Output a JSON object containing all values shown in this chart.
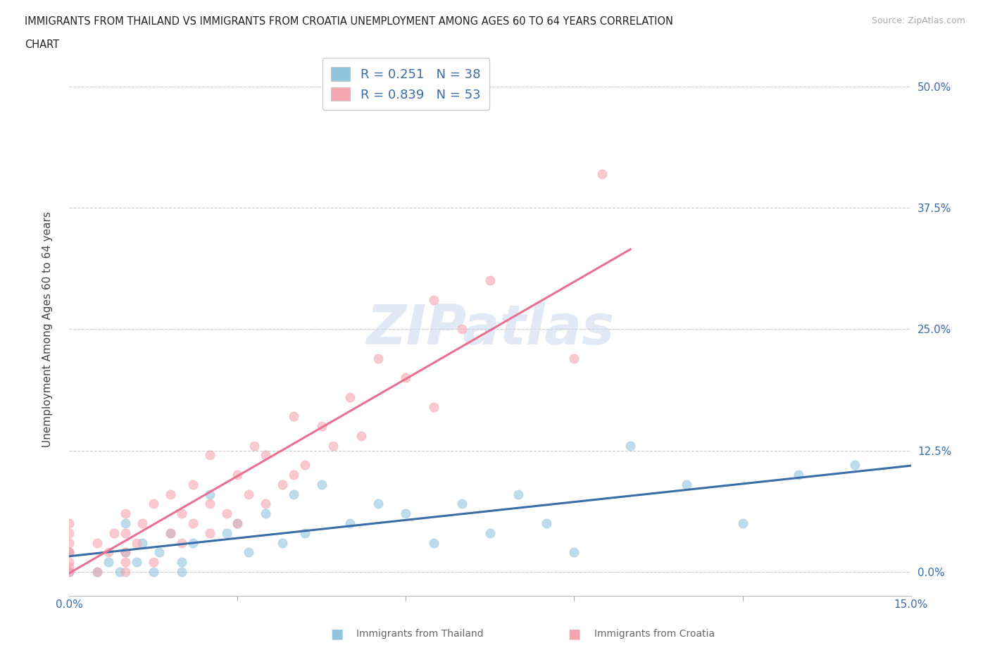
{
  "title_line1": "IMMIGRANTS FROM THAILAND VS IMMIGRANTS FROM CROATIA UNEMPLOYMENT AMONG AGES 60 TO 64 YEARS CORRELATION",
  "title_line2": "CHART",
  "source": "Source: ZipAtlas.com",
  "ylabel": "Unemployment Among Ages 60 to 64 years",
  "xlim": [
    0.0,
    0.15
  ],
  "ylim": [
    -0.025,
    0.525
  ],
  "yticks": [
    0.0,
    0.125,
    0.25,
    0.375,
    0.5
  ],
  "ytick_labels": [
    "0.0%",
    "12.5%",
    "25.0%",
    "37.5%",
    "50.0%"
  ],
  "R_thailand": 0.251,
  "N_thailand": 38,
  "R_croatia": 0.839,
  "N_croatia": 53,
  "color_thailand": "#92C5DE",
  "color_croatia": "#F4A5B0",
  "line_color_thailand": "#3A6CA8",
  "line_color_croatia": "#E87090",
  "thailand_x": [
    0.0,
    0.0,
    0.005,
    0.007,
    0.009,
    0.01,
    0.01,
    0.012,
    0.013,
    0.015,
    0.016,
    0.018,
    0.02,
    0.02,
    0.022,
    0.025,
    0.028,
    0.03,
    0.032,
    0.035,
    0.038,
    0.04,
    0.042,
    0.045,
    0.05,
    0.055,
    0.06,
    0.065,
    0.07,
    0.075,
    0.08,
    0.085,
    0.09,
    0.1,
    0.11,
    0.12,
    0.13,
    0.14
  ],
  "thailand_y": [
    0.0,
    0.02,
    0.0,
    0.01,
    0.0,
    0.02,
    0.05,
    0.01,
    0.03,
    0.0,
    0.02,
    0.04,
    0.0,
    0.01,
    0.03,
    0.08,
    0.04,
    0.05,
    0.02,
    0.06,
    0.03,
    0.08,
    0.04,
    0.09,
    0.05,
    0.07,
    0.06,
    0.03,
    0.07,
    0.04,
    0.08,
    0.05,
    0.02,
    0.13,
    0.09,
    0.05,
    0.1,
    0.11
  ],
  "croatia_x": [
    0.0,
    0.0,
    0.0,
    0.0,
    0.0,
    0.0,
    0.0,
    0.0,
    0.005,
    0.005,
    0.007,
    0.008,
    0.01,
    0.01,
    0.01,
    0.01,
    0.01,
    0.012,
    0.013,
    0.015,
    0.015,
    0.018,
    0.018,
    0.02,
    0.02,
    0.022,
    0.022,
    0.025,
    0.025,
    0.025,
    0.028,
    0.03,
    0.03,
    0.032,
    0.033,
    0.035,
    0.035,
    0.038,
    0.04,
    0.04,
    0.042,
    0.045,
    0.047,
    0.05,
    0.052,
    0.055,
    0.06,
    0.065,
    0.065,
    0.07,
    0.075,
    0.09,
    0.095
  ],
  "croatia_y": [
    0.0,
    0.005,
    0.01,
    0.02,
    0.02,
    0.03,
    0.04,
    0.05,
    0.0,
    0.03,
    0.02,
    0.04,
    0.0,
    0.01,
    0.02,
    0.04,
    0.06,
    0.03,
    0.05,
    0.01,
    0.07,
    0.04,
    0.08,
    0.03,
    0.06,
    0.05,
    0.09,
    0.04,
    0.07,
    0.12,
    0.06,
    0.05,
    0.1,
    0.08,
    0.13,
    0.07,
    0.12,
    0.09,
    0.1,
    0.16,
    0.11,
    0.15,
    0.13,
    0.18,
    0.14,
    0.22,
    0.2,
    0.17,
    0.28,
    0.25,
    0.3,
    0.22,
    0.41
  ]
}
